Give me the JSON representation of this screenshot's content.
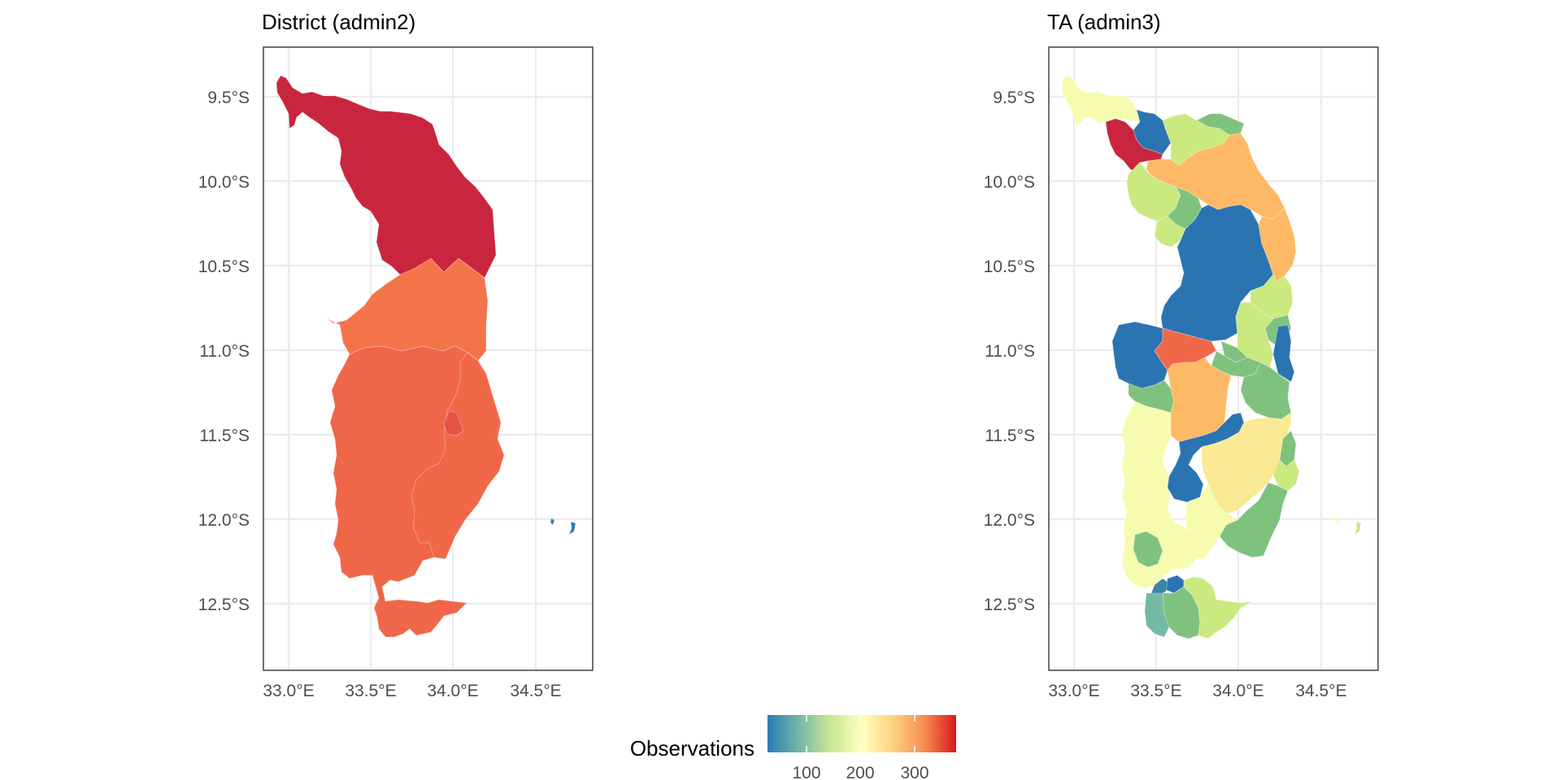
{
  "panels": [
    {
      "title": "District (admin2)",
      "x_ticks": [
        "33.0°E",
        "33.5°E",
        "34.0°E",
        "34.5°E"
      ],
      "y_ticks": [
        "9.5°S",
        "10.0°S",
        "10.5°S",
        "11.0°S",
        "11.5°S",
        "12.0°S",
        "12.5°S"
      ]
    },
    {
      "title": "TA (admin3)",
      "x_ticks": [
        "33.0°E",
        "33.5°E",
        "34.0°E",
        "34.5°E"
      ],
      "y_ticks": [
        "9.5°S",
        "10.0°S",
        "10.5°S",
        "11.0°S",
        "11.5°S",
        "12.0°S",
        "12.5°S"
      ]
    }
  ],
  "legend": {
    "title": "Observations",
    "ticks": [
      "100",
      "200",
      "300"
    ],
    "palette": [
      "#2b7bb4",
      "#74b9a5",
      "#c8e793",
      "#ffffbf",
      "#fdd080",
      "#f88d52",
      "#d7191c"
    ]
  },
  "chart_data": {
    "type": "choropleth",
    "x_range": [
      32.85,
      34.85
    ],
    "y_range": [
      -12.9,
      -9.2
    ],
    "x_tick_values": [
      33.0,
      33.5,
      34.0,
      34.5
    ],
    "y_tick_values": [
      -9.5,
      -10.0,
      -10.5,
      -11.0,
      -11.5,
      -12.0,
      -12.5
    ],
    "legend_ticks": [
      100,
      200,
      300
    ],
    "legend_range": [
      20,
      370
    ],
    "grid": true,
    "legend_placement": "bottom",
    "panels": [
      {
        "title": "District (admin2)",
        "regions": [
          {
            "observations": 360,
            "color": "#c9253e"
          },
          {
            "observations": 290,
            "color": "#f4744a"
          },
          {
            "observations": 300,
            "color": "#ef6649"
          },
          {
            "observations": 320,
            "color": "#e55346"
          },
          {
            "observations": 35,
            "color": "#2b7bb4"
          }
        ]
      },
      {
        "title": "TA (admin3)",
        "regions": [
          {
            "observations": 200,
            "color": "#f7fbad"
          },
          {
            "observations": 360,
            "color": "#c9253e"
          },
          {
            "observations": 30,
            "color": "#2b74b2"
          },
          {
            "observations": 130,
            "color": "#7fc27e"
          },
          {
            "observations": 150,
            "color": "#cae97f"
          },
          {
            "observations": 250,
            "color": "#fdb965"
          },
          {
            "observations": 320,
            "color": "#f06848"
          },
          {
            "observations": 220,
            "color": "#fbe993"
          }
        ]
      }
    ]
  }
}
